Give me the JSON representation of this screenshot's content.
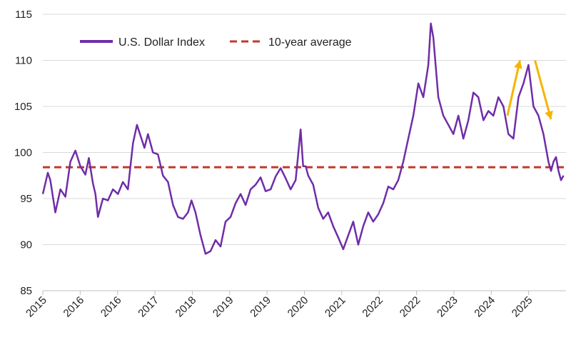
{
  "chart_data": {
    "type": "line",
    "title": "",
    "xlabel": "",
    "ylabel": "",
    "ylim": [
      85,
      115
    ],
    "yticks": [
      85,
      90,
      95,
      100,
      105,
      110,
      115
    ],
    "xtick_labels": [
      "2015",
      "2016",
      "2016",
      "2017",
      "2018",
      "2019",
      "2019",
      "2020",
      "2021",
      "2022",
      "2022",
      "2023",
      "2024",
      "2025"
    ],
    "xlim": [
      2015.0,
      2025.45
    ],
    "grid": "horizontal",
    "legend_position": "top-left",
    "colors": {
      "index": "#6f2da8",
      "average": "#c0392b",
      "arrows": "#f5b400"
    },
    "series": [
      {
        "name": "U.S. Dollar Index",
        "x": [
          2015.0,
          2015.1,
          2015.15,
          2015.25,
          2015.35,
          2015.45,
          2015.55,
          2015.65,
          2015.75,
          2015.85,
          2015.92,
          2016.0,
          2016.05,
          2016.1,
          2016.2,
          2016.3,
          2016.4,
          2016.5,
          2016.6,
          2016.7,
          2016.8,
          2016.88,
          2016.97,
          2017.03,
          2017.1,
          2017.2,
          2017.3,
          2017.4,
          2017.5,
          2017.6,
          2017.7,
          2017.8,
          2017.9,
          2017.97,
          2018.05,
          2018.15,
          2018.25,
          2018.35,
          2018.45,
          2018.55,
          2018.65,
          2018.75,
          2018.85,
          2018.95,
          2019.05,
          2019.15,
          2019.25,
          2019.35,
          2019.45,
          2019.55,
          2019.65,
          2019.75,
          2019.85,
          2019.95,
          2020.05,
          2020.15,
          2020.2,
          2020.25,
          2020.3,
          2020.4,
          2020.5,
          2020.6,
          2020.7,
          2020.8,
          2020.9,
          2021.0,
          2021.1,
          2021.2,
          2021.3,
          2021.4,
          2021.5,
          2021.6,
          2021.7,
          2021.8,
          2021.9,
          2022.0,
          2022.1,
          2022.2,
          2022.3,
          2022.4,
          2022.5,
          2022.6,
          2022.7,
          2022.75,
          2022.8,
          2022.9,
          2023.0,
          2023.1,
          2023.2,
          2023.3,
          2023.4,
          2023.5,
          2023.6,
          2023.7,
          2023.8,
          2023.9,
          2024.0,
          2024.1,
          2024.2,
          2024.3,
          2024.4,
          2024.5,
          2024.6,
          2024.7,
          2024.8,
          2024.9,
          2025.0,
          2025.05,
          2025.1,
          2025.15,
          2025.2,
          2025.25,
          2025.3,
          2025.35,
          2025.4
        ],
        "values": [
          95.5,
          97.8,
          97.0,
          93.5,
          96.0,
          95.2,
          99.0,
          100.2,
          98.5,
          97.6,
          99.4,
          96.7,
          95.5,
          93.0,
          95.0,
          94.8,
          96.0,
          95.5,
          96.8,
          96.0,
          101.0,
          103.0,
          101.5,
          100.5,
          102.0,
          100.0,
          99.8,
          97.5,
          96.8,
          94.3,
          93.0,
          92.8,
          93.5,
          94.8,
          93.5,
          91.0,
          89.0,
          89.3,
          90.5,
          89.8,
          92.5,
          93.0,
          94.5,
          95.5,
          94.3,
          96.0,
          96.5,
          97.3,
          95.8,
          96.0,
          97.4,
          98.3,
          97.2,
          96.0,
          97.0,
          102.5,
          98.5,
          98.5,
          97.5,
          96.5,
          94.0,
          92.8,
          93.5,
          92.0,
          90.8,
          89.5,
          91.0,
          92.5,
          90.0,
          92.0,
          93.5,
          92.5,
          93.3,
          94.5,
          96.3,
          96.0,
          97.0,
          99.0,
          101.5,
          104.0,
          107.5,
          106.0,
          109.5,
          114.0,
          112.5,
          106.0,
          104.0,
          103.0,
          102.0,
          104.0,
          101.5,
          103.5,
          106.5,
          106.0,
          103.5,
          104.5,
          104.0,
          106.0,
          105.0,
          102.0,
          101.5,
          106.0,
          107.5,
          109.5,
          105.0,
          104.0,
          102.0,
          100.5,
          99.0,
          98.0,
          99.0,
          99.5,
          98.0,
          97.0,
          97.5
        ]
      },
      {
        "name": "10-year average",
        "values": [
          98.4
        ]
      }
    ],
    "annotations": [
      {
        "type": "arrow",
        "direction": "up",
        "from": [
          2024.28,
          104.0
        ],
        "to": [
          2024.53,
          110.0
        ]
      },
      {
        "type": "arrow",
        "direction": "down",
        "from": [
          2024.83,
          110.0
        ],
        "to": [
          2025.15,
          103.6
        ]
      }
    ]
  }
}
